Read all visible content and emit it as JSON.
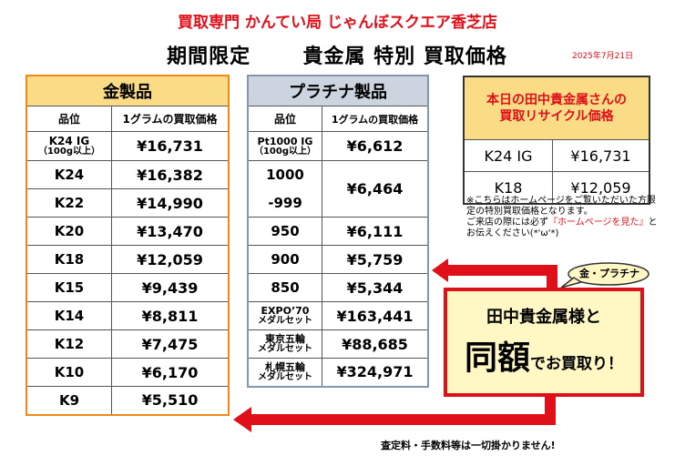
{
  "header": {
    "store_name": "買取専門 かんてい局 じゃんぼスクエア香芝店",
    "headline_left": "期間限定",
    "headline_right": "貴金属 特別 買取価格",
    "date": "2025年7月21日"
  },
  "gold": {
    "title": "金製品",
    "col_grade": "品位",
    "col_price": "1グラムの買取価格",
    "rows": [
      {
        "grade": "K24 IG",
        "sub": "（100g以上）",
        "price": "¥16,731"
      },
      {
        "grade": "K24",
        "price": "¥16,382"
      },
      {
        "grade": "K22",
        "price": "¥14,990"
      },
      {
        "grade": "K20",
        "price": "¥13,470"
      },
      {
        "grade": "K18",
        "price": "¥12,059"
      },
      {
        "grade": "K15",
        "price": "¥9,439"
      },
      {
        "grade": "K14",
        "price": "¥8,811"
      },
      {
        "grade": "K12",
        "price": "¥7,475"
      },
      {
        "grade": "K10",
        "price": "¥6,170"
      },
      {
        "grade": "K9",
        "price": "¥5,510"
      }
    ]
  },
  "platinum": {
    "title": "プラチナ製品",
    "col_grade": "品位",
    "col_price": "1グラムの買取価格",
    "r0": {
      "grade": "Pt1000 IG",
      "sub": "（100g以上）",
      "price": "¥6,612"
    },
    "r1": {
      "grade_a": "1000",
      "grade_b": "-999",
      "price": "¥6,464"
    },
    "r2": {
      "grade": "950",
      "price": "¥6,111"
    },
    "r3": {
      "grade": "900",
      "price": "¥5,759"
    },
    "r4": {
      "grade": "850",
      "price": "¥5,344"
    },
    "r5": {
      "grade": "EXPO’70",
      "sub": "メダルセット",
      "price": "¥163,441"
    },
    "r6": {
      "grade": "東京五輪",
      "sub": "メダルセット",
      "price": "¥88,685"
    },
    "r7": {
      "grade": "札幌五輪",
      "sub": "メダルセット",
      "price": "¥324,971"
    }
  },
  "recycle": {
    "title_1": "本日の田中貴金属さんの",
    "title_2": "買取リサイクル価格",
    "rows": [
      {
        "grade": "K24 IG",
        "price": "¥16,731"
      },
      {
        "grade": "K18",
        "price": "¥12,059"
      }
    ]
  },
  "note": {
    "line_1": "※こちらはホームページをご覧いただいた方限定の特別買取価格となります。",
    "line_2a": "ご来店の際には必ず",
    "line_2b": "『ホームページを見た』",
    "line_2c": "とお伝えください(*'ω'*)"
  },
  "badge": {
    "text": "金・プラチナ"
  },
  "callout": {
    "line_1": "田中貴金属様と",
    "big": "同額",
    "rest": "でお買取り！"
  },
  "footer": {
    "text": "査定料・手数料等は一切掛かりません!"
  },
  "colors": {
    "accent_red": "#e0101a",
    "gold_header": "#fbdc86",
    "platinum_header": "#ccd4df",
    "callout_bg": "#fff7c4"
  }
}
